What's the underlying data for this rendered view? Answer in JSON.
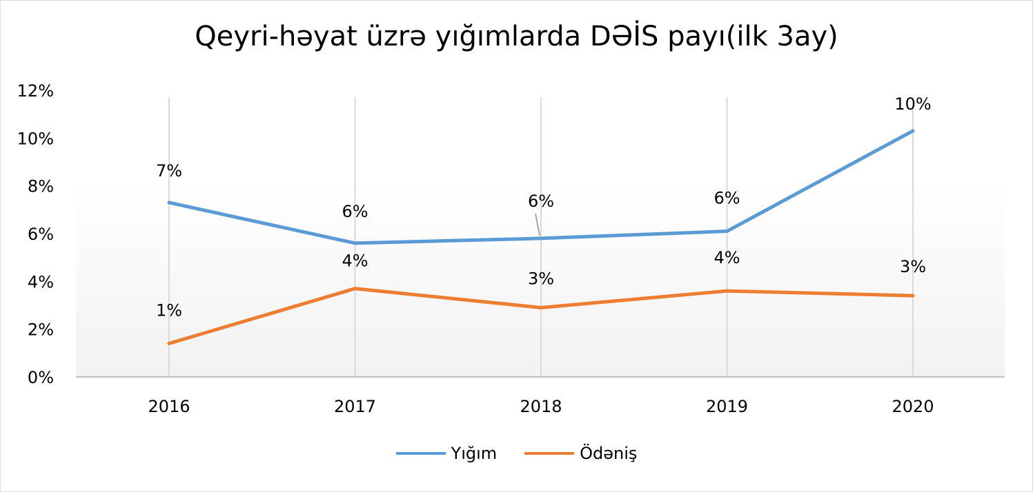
{
  "colors": {
    "series1": "#5b9bd5",
    "series2": "#ed7d31",
    "grid": "#d9d9d9",
    "axis": "#bfbfbf",
    "text": "#000000"
  },
  "chart_data": {
    "type": "line",
    "title": "Qeyri-həyat üzrə yığımlarda DƏİS payı(ilk 3ay)",
    "xlabel": "",
    "ylabel": "",
    "categories": [
      "2016",
      "2017",
      "2018",
      "2019",
      "2020"
    ],
    "ylim": [
      0,
      12
    ],
    "yticks": [
      "0%",
      "2%",
      "4%",
      "6%",
      "8%",
      "10%",
      "12%"
    ],
    "grid": "vertical",
    "legend_position": "bottom",
    "series": [
      {
        "name": "Yığım",
        "values": [
          7.3,
          5.6,
          5.8,
          6.1,
          10.3
        ],
        "labels": [
          "7%",
          "6%",
          "6%",
          "6%",
          "10%"
        ]
      },
      {
        "name": "Ödəniş",
        "values": [
          1.4,
          3.7,
          2.9,
          3.6,
          3.4
        ],
        "labels": [
          "1%",
          "4%",
          "3%",
          "4%",
          "3%"
        ]
      }
    ]
  }
}
